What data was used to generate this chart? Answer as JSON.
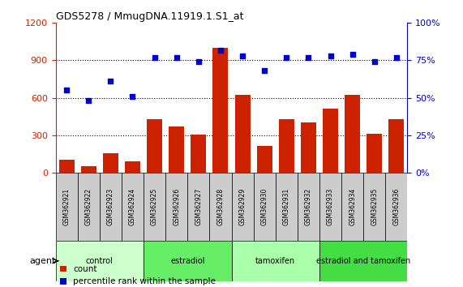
{
  "title": "GDS5278 / MmugDNA.11919.1.S1_at",
  "categories": [
    "GSM362921",
    "GSM362922",
    "GSM362923",
    "GSM362924",
    "GSM362925",
    "GSM362926",
    "GSM362927",
    "GSM362928",
    "GSM362929",
    "GSM362930",
    "GSM362931",
    "GSM362932",
    "GSM362933",
    "GSM362934",
    "GSM362935",
    "GSM362936"
  ],
  "bar_values": [
    100,
    50,
    155,
    90,
    430,
    370,
    305,
    1000,
    620,
    215,
    430,
    400,
    510,
    620,
    310,
    430
  ],
  "scatter_values": [
    55,
    48,
    61,
    51,
    77,
    77,
    74,
    82,
    78,
    68,
    77,
    77,
    78,
    79,
    74,
    77
  ],
  "groups": [
    {
      "label": "control",
      "start": 0,
      "end": 4,
      "color": "#ccffcc"
    },
    {
      "label": "estradiol",
      "start": 4,
      "end": 8,
      "color": "#66ee66"
    },
    {
      "label": "tamoxifen",
      "start": 8,
      "end": 12,
      "color": "#aaffaa"
    },
    {
      "label": "estradiol and tamoxifen",
      "start": 12,
      "end": 16,
      "color": "#44dd44"
    }
  ],
  "bar_color": "#cc2200",
  "scatter_color": "#0000cc",
  "ylim_left": [
    0,
    1200
  ],
  "ylim_right": [
    0,
    100
  ],
  "yticks_left": [
    0,
    300,
    600,
    900,
    1200
  ],
  "yticks_right": [
    0,
    25,
    50,
    75,
    100
  ],
  "left_axis_color": "#cc2200",
  "right_axis_color": "#0000cc",
  "legend_items": [
    {
      "label": "count",
      "color": "#cc2200"
    },
    {
      "label": "percentile rank within the sample",
      "color": "#0000cc"
    }
  ],
  "agent_label": "agent",
  "figsize": [
    5.71,
    3.54
  ],
  "dpi": 100
}
